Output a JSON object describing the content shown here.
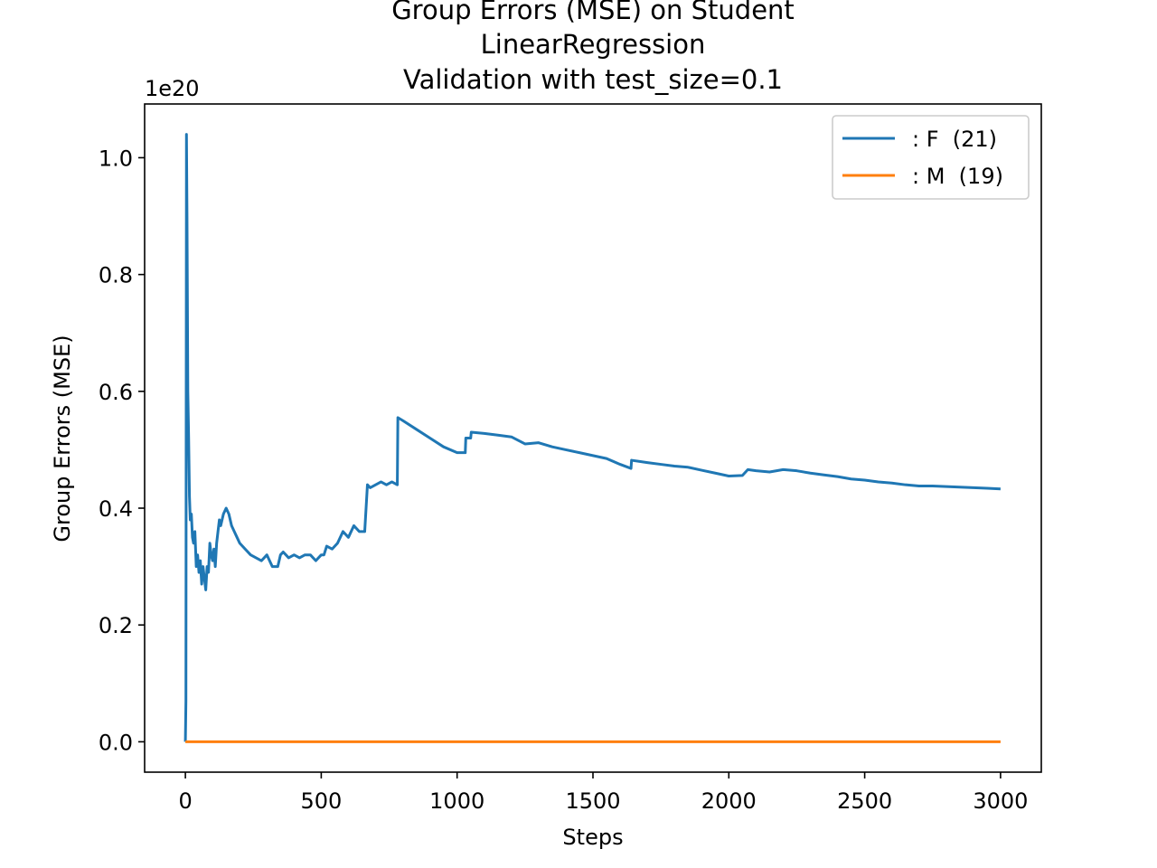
{
  "chart_data": {
    "type": "line",
    "title_lines": [
      "Group Errors (MSE) on Student",
      "LinearRegression",
      "Validation with test_size=0.1"
    ],
    "xlabel": "Steps",
    "ylabel": "Group Errors (MSE)",
    "y_offset_text": "1e20",
    "y_scale_factor": 1e+20,
    "xlim": [
      -150,
      3150
    ],
    "ylim": [
      -0.052,
      1.092
    ],
    "x_ticks": [
      0,
      500,
      1000,
      1500,
      2000,
      2500,
      3000
    ],
    "x_tick_labels": [
      "0",
      "500",
      "1000",
      "1500",
      "2000",
      "2500",
      "3000"
    ],
    "y_ticks": [
      0.0,
      0.2,
      0.4,
      0.6,
      0.8,
      1.0
    ],
    "y_tick_labels": [
      "0.0",
      "0.2",
      "0.4",
      "0.6",
      "0.8",
      "1.0"
    ],
    "grid": false,
    "legend_position": "upper right",
    "series": [
      {
        "name": ": F  (21)",
        "color": "#1f77b4",
        "x": [
          0,
          2,
          4,
          6,
          9,
          12,
          15,
          18,
          22,
          26,
          30,
          35,
          40,
          45,
          50,
          55,
          60,
          65,
          70,
          75,
          80,
          85,
          90,
          95,
          100,
          105,
          110,
          115,
          120,
          125,
          130,
          140,
          150,
          160,
          170,
          180,
          190,
          200,
          220,
          240,
          260,
          280,
          300,
          320,
          340,
          350,
          360,
          370,
          380,
          400,
          420,
          440,
          460,
          480,
          500,
          510,
          520,
          540,
          560,
          580,
          600,
          620,
          640,
          660,
          670,
          680,
          700,
          720,
          740,
          760,
          780,
          782,
          800,
          850,
          900,
          950,
          1000,
          1030,
          1032,
          1050,
          1052,
          1100,
          1150,
          1200,
          1250,
          1300,
          1350,
          1400,
          1450,
          1500,
          1550,
          1600,
          1640,
          1642,
          1700,
          1750,
          1800,
          1850,
          1900,
          1950,
          2000,
          2050,
          2070,
          2100,
          2150,
          2200,
          2250,
          2300,
          2350,
          2400,
          2450,
          2500,
          2550,
          2600,
          2650,
          2700,
          2750,
          2800,
          2850,
          2900,
          2950,
          3000
        ],
        "y": [
          0.0,
          0.07,
          1.04,
          0.9,
          0.6,
          0.52,
          0.42,
          0.38,
          0.39,
          0.35,
          0.34,
          0.36,
          0.3,
          0.32,
          0.29,
          0.31,
          0.27,
          0.3,
          0.28,
          0.26,
          0.3,
          0.29,
          0.34,
          0.32,
          0.31,
          0.33,
          0.3,
          0.34,
          0.36,
          0.38,
          0.37,
          0.39,
          0.4,
          0.39,
          0.37,
          0.36,
          0.35,
          0.34,
          0.33,
          0.32,
          0.315,
          0.31,
          0.32,
          0.3,
          0.3,
          0.32,
          0.325,
          0.32,
          0.315,
          0.32,
          0.315,
          0.32,
          0.32,
          0.31,
          0.32,
          0.32,
          0.335,
          0.33,
          0.34,
          0.36,
          0.35,
          0.37,
          0.36,
          0.36,
          0.44,
          0.435,
          0.44,
          0.445,
          0.44,
          0.445,
          0.44,
          0.555,
          0.55,
          0.535,
          0.52,
          0.505,
          0.495,
          0.495,
          0.52,
          0.52,
          0.53,
          0.528,
          0.525,
          0.522,
          0.51,
          0.512,
          0.505,
          0.5,
          0.495,
          0.49,
          0.485,
          0.475,
          0.468,
          0.482,
          0.478,
          0.475,
          0.472,
          0.47,
          0.465,
          0.46,
          0.455,
          0.456,
          0.466,
          0.464,
          0.462,
          0.466,
          0.464,
          0.46,
          0.457,
          0.454,
          0.45,
          0.448,
          0.445,
          0.443,
          0.44,
          0.438,
          0.438,
          0.437,
          0.436,
          0.435,
          0.434,
          0.433
        ]
      },
      {
        "name": ": M  (19)",
        "color": "#ff7f0e",
        "x": [
          0,
          3000
        ],
        "y": [
          0.0,
          0.0
        ]
      }
    ]
  }
}
